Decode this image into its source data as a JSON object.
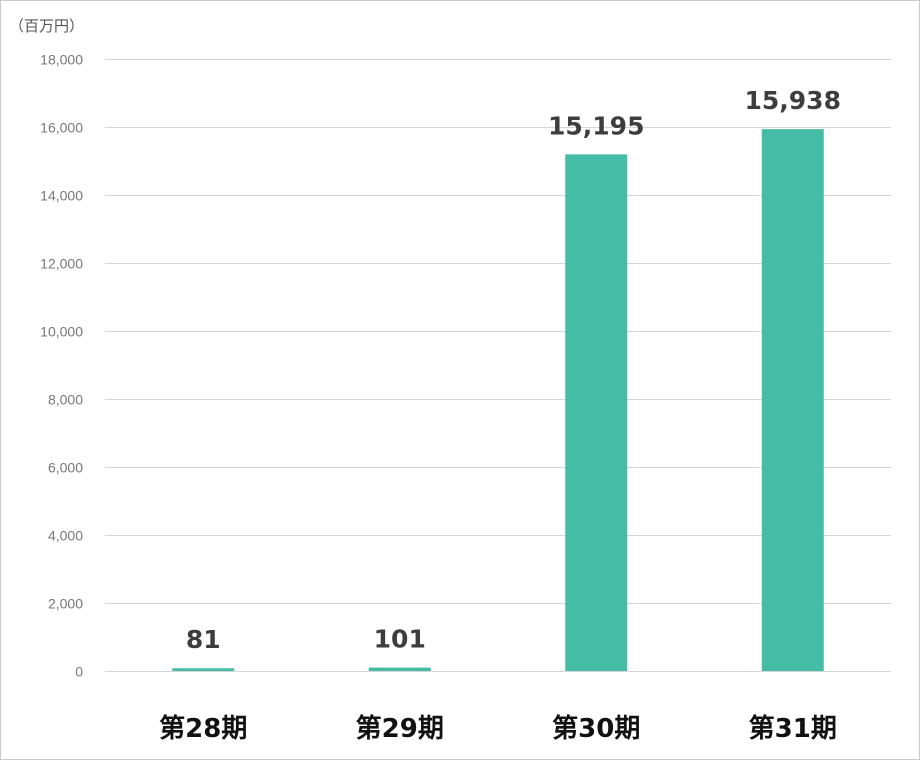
{
  "chart_data": {
    "type": "bar",
    "unit_label": "（百万円）",
    "categories": [
      "第28期",
      "第29期",
      "第30期",
      "第31期"
    ],
    "values": [
      81,
      101,
      15195,
      15938
    ],
    "data_labels": [
      "81",
      "101",
      "15,195",
      "15,938"
    ],
    "ylim": [
      0,
      18000
    ],
    "yticks": [
      0,
      2000,
      4000,
      6000,
      8000,
      10000,
      12000,
      14000,
      16000,
      18000
    ],
    "ytick_labels": [
      "0",
      "2,000",
      "4,000",
      "6,000",
      "8,000",
      "10,000",
      "12,000",
      "14,000",
      "16,000",
      "18,000"
    ],
    "grid": true,
    "legend": false,
    "bar_color": "#45bca6"
  }
}
